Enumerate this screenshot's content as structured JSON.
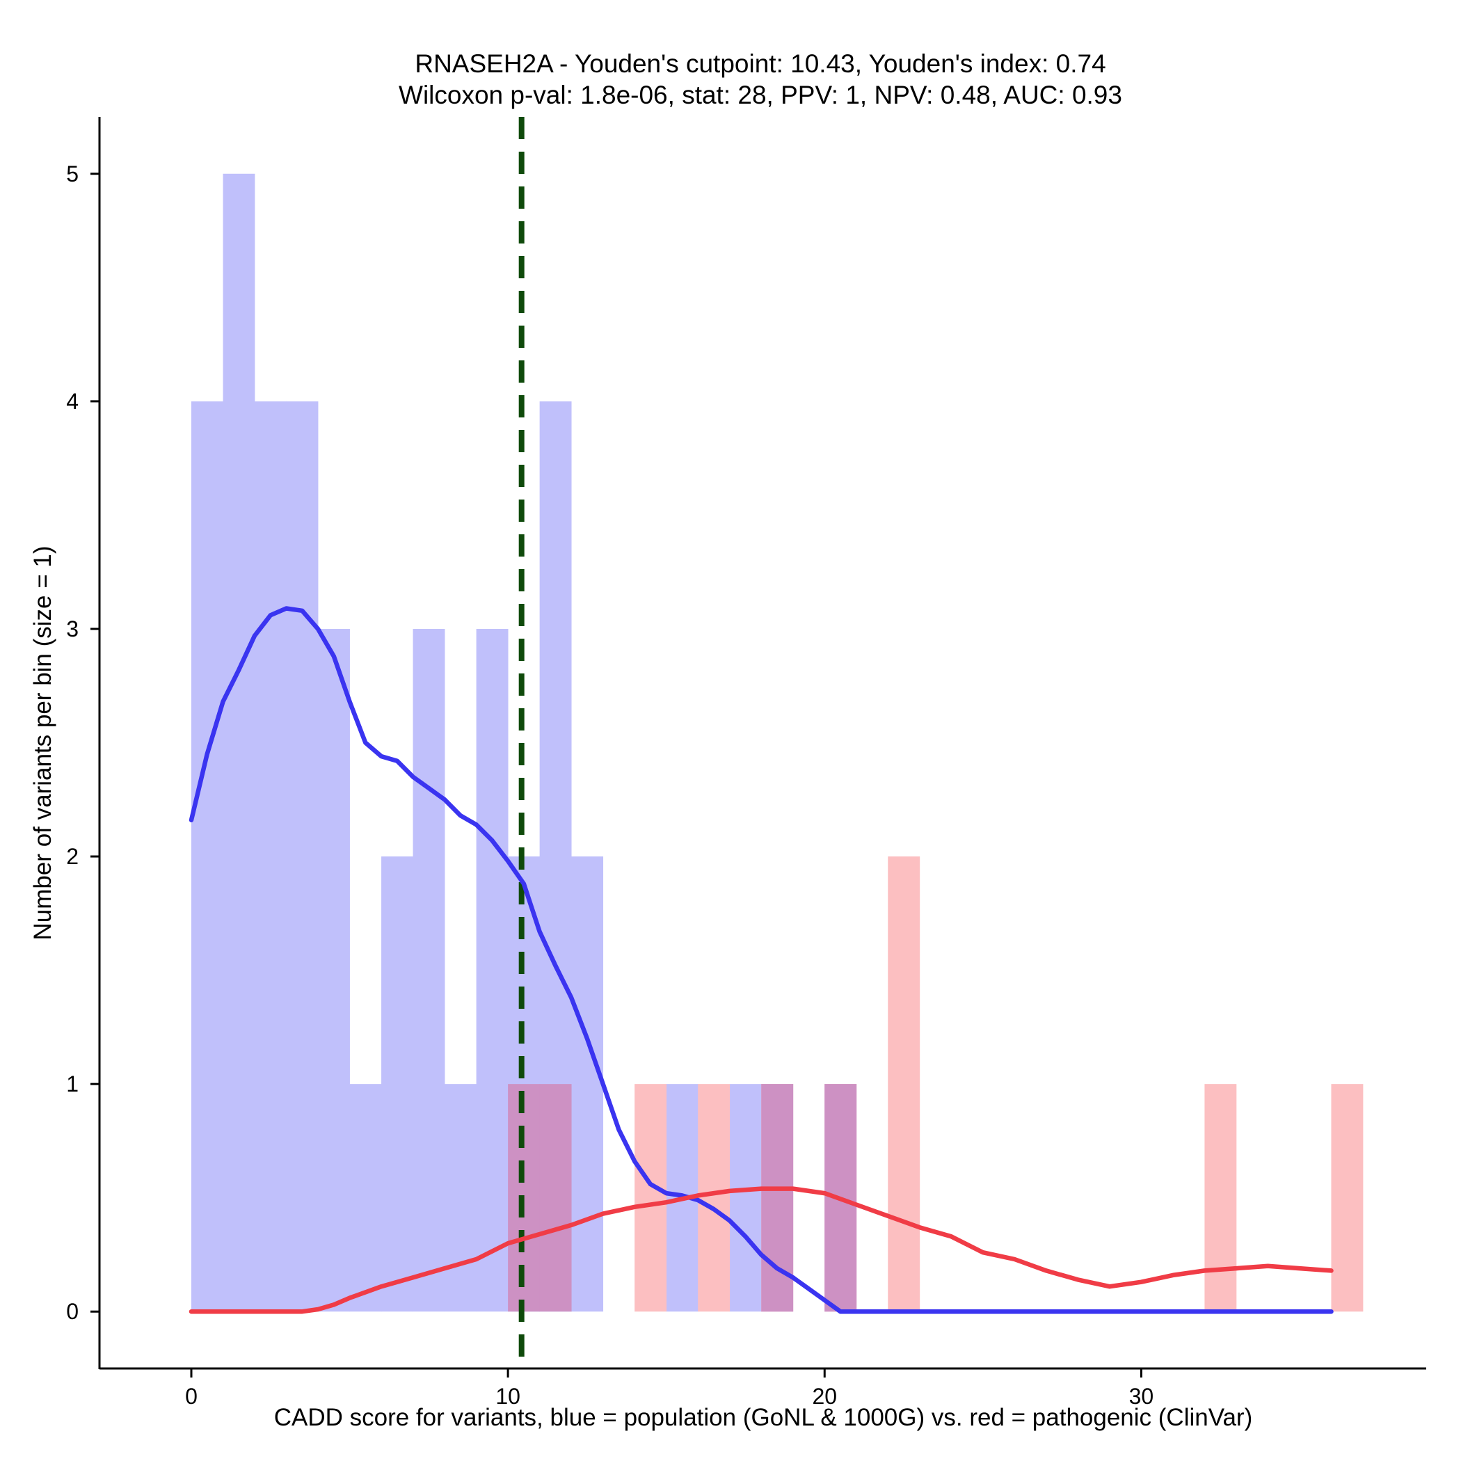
{
  "chart_data": {
    "type": "bar",
    "title_line1": "RNASEH2A - Youden's cutpoint: 10.43, Youden's index: 0.74",
    "title_line2": "Wilcoxon p-val: 1.8e-06, stat: 28, PPV: 1, NPV: 0.48, AUC: 0.93",
    "xlabel": "CADD score for variants, blue = population (GoNL & 1000G) vs. red = pathogenic (ClinVar)",
    "ylabel": "Number of variants per bin (size = 1)",
    "xlim": [
      -2.9,
      39
    ],
    "ylim": [
      -0.25,
      5.25
    ],
    "xticks": [
      0,
      10,
      20,
      30
    ],
    "yticks": [
      0,
      1,
      2,
      3,
      4,
      5
    ],
    "xtick_labels": [
      "0",
      "10",
      "20",
      "30"
    ],
    "ytick_labels": [
      "0",
      "1",
      "2",
      "3",
      "4",
      "5"
    ],
    "bin_size": 1,
    "cutpoint": 10.43,
    "colors": {
      "population_bar": "#c0c0fb",
      "pathogenic_bar": "#fcbfc1",
      "overlap_bar": "#cd91c3",
      "population_line": "#3a34f0",
      "pathogenic_line": "#f03c46",
      "cutpoint_line": "#0f4a0b"
    },
    "series": [
      {
        "name": "population (GoNL & 1000G)",
        "bins": [
          {
            "start": 0,
            "count": 4
          },
          {
            "start": 1,
            "count": 5
          },
          {
            "start": 2,
            "count": 4
          },
          {
            "start": 3,
            "count": 4
          },
          {
            "start": 4,
            "count": 3
          },
          {
            "start": 5,
            "count": 1
          },
          {
            "start": 6,
            "count": 2
          },
          {
            "start": 7,
            "count": 3
          },
          {
            "start": 8,
            "count": 1
          },
          {
            "start": 9,
            "count": 3
          },
          {
            "start": 10,
            "count": 2
          },
          {
            "start": 11,
            "count": 4
          },
          {
            "start": 12,
            "count": 2
          },
          {
            "start": 15,
            "count": 1
          },
          {
            "start": 17,
            "count": 1
          },
          {
            "start": 18,
            "count": 1
          },
          {
            "start": 20,
            "count": 1
          }
        ],
        "density": [
          [
            0,
            2.16
          ],
          [
            0.5,
            2.45
          ],
          [
            1,
            2.68
          ],
          [
            1.5,
            2.82
          ],
          [
            2,
            2.97
          ],
          [
            2.5,
            3.06
          ],
          [
            3,
            3.09
          ],
          [
            3.5,
            3.08
          ],
          [
            4,
            3.0
          ],
          [
            4.5,
            2.88
          ],
          [
            5,
            2.68
          ],
          [
            5.5,
            2.5
          ],
          [
            6,
            2.44
          ],
          [
            6.5,
            2.42
          ],
          [
            7,
            2.35
          ],
          [
            7.5,
            2.3
          ],
          [
            8,
            2.25
          ],
          [
            8.5,
            2.18
          ],
          [
            9,
            2.14
          ],
          [
            9.5,
            2.07
          ],
          [
            10,
            1.98
          ],
          [
            10.5,
            1.88
          ],
          [
            11,
            1.67
          ],
          [
            11.5,
            1.52
          ],
          [
            12,
            1.38
          ],
          [
            12.5,
            1.2
          ],
          [
            13,
            1.0
          ],
          [
            13.5,
            0.8
          ],
          [
            14,
            0.66
          ],
          [
            14.5,
            0.56
          ],
          [
            15,
            0.52
          ],
          [
            15.5,
            0.51
          ],
          [
            16,
            0.49
          ],
          [
            16.5,
            0.45
          ],
          [
            17,
            0.4
          ],
          [
            17.5,
            0.33
          ],
          [
            18,
            0.25
          ],
          [
            18.5,
            0.19
          ],
          [
            19,
            0.15
          ],
          [
            19.5,
            0.1
          ],
          [
            20,
            0.05
          ],
          [
            20.5,
            0.0
          ],
          [
            23,
            0.0
          ],
          [
            30,
            0.0
          ],
          [
            36,
            0.0
          ]
        ]
      },
      {
        "name": "pathogenic (ClinVar)",
        "bins": [
          {
            "start": 10,
            "count": 1
          },
          {
            "start": 11,
            "count": 1
          },
          {
            "start": 14,
            "count": 1
          },
          {
            "start": 16,
            "count": 1
          },
          {
            "start": 18,
            "count": 1
          },
          {
            "start": 20,
            "count": 1
          },
          {
            "start": 22,
            "count": 2
          },
          {
            "start": 32,
            "count": 1
          },
          {
            "start": 36,
            "count": 1
          }
        ],
        "density": [
          [
            0,
            0.0
          ],
          [
            3.5,
            0.0
          ],
          [
            4,
            0.01
          ],
          [
            4.5,
            0.03
          ],
          [
            5,
            0.06
          ],
          [
            6,
            0.11
          ],
          [
            7,
            0.15
          ],
          [
            8,
            0.19
          ],
          [
            9,
            0.23
          ],
          [
            10,
            0.3
          ],
          [
            11,
            0.34
          ],
          [
            12,
            0.38
          ],
          [
            13,
            0.43
          ],
          [
            14,
            0.46
          ],
          [
            15,
            0.48
          ],
          [
            16,
            0.51
          ],
          [
            17,
            0.53
          ],
          [
            18,
            0.54
          ],
          [
            19,
            0.54
          ],
          [
            20,
            0.52
          ],
          [
            21,
            0.47
          ],
          [
            22,
            0.42
          ],
          [
            23,
            0.37
          ],
          [
            24,
            0.33
          ],
          [
            25,
            0.26
          ],
          [
            26,
            0.23
          ],
          [
            27,
            0.18
          ],
          [
            28,
            0.14
          ],
          [
            29,
            0.11
          ],
          [
            30,
            0.13
          ],
          [
            31,
            0.16
          ],
          [
            32,
            0.18
          ],
          [
            33,
            0.19
          ],
          [
            34,
            0.2
          ],
          [
            35,
            0.19
          ],
          [
            36,
            0.18
          ]
        ]
      }
    ]
  }
}
